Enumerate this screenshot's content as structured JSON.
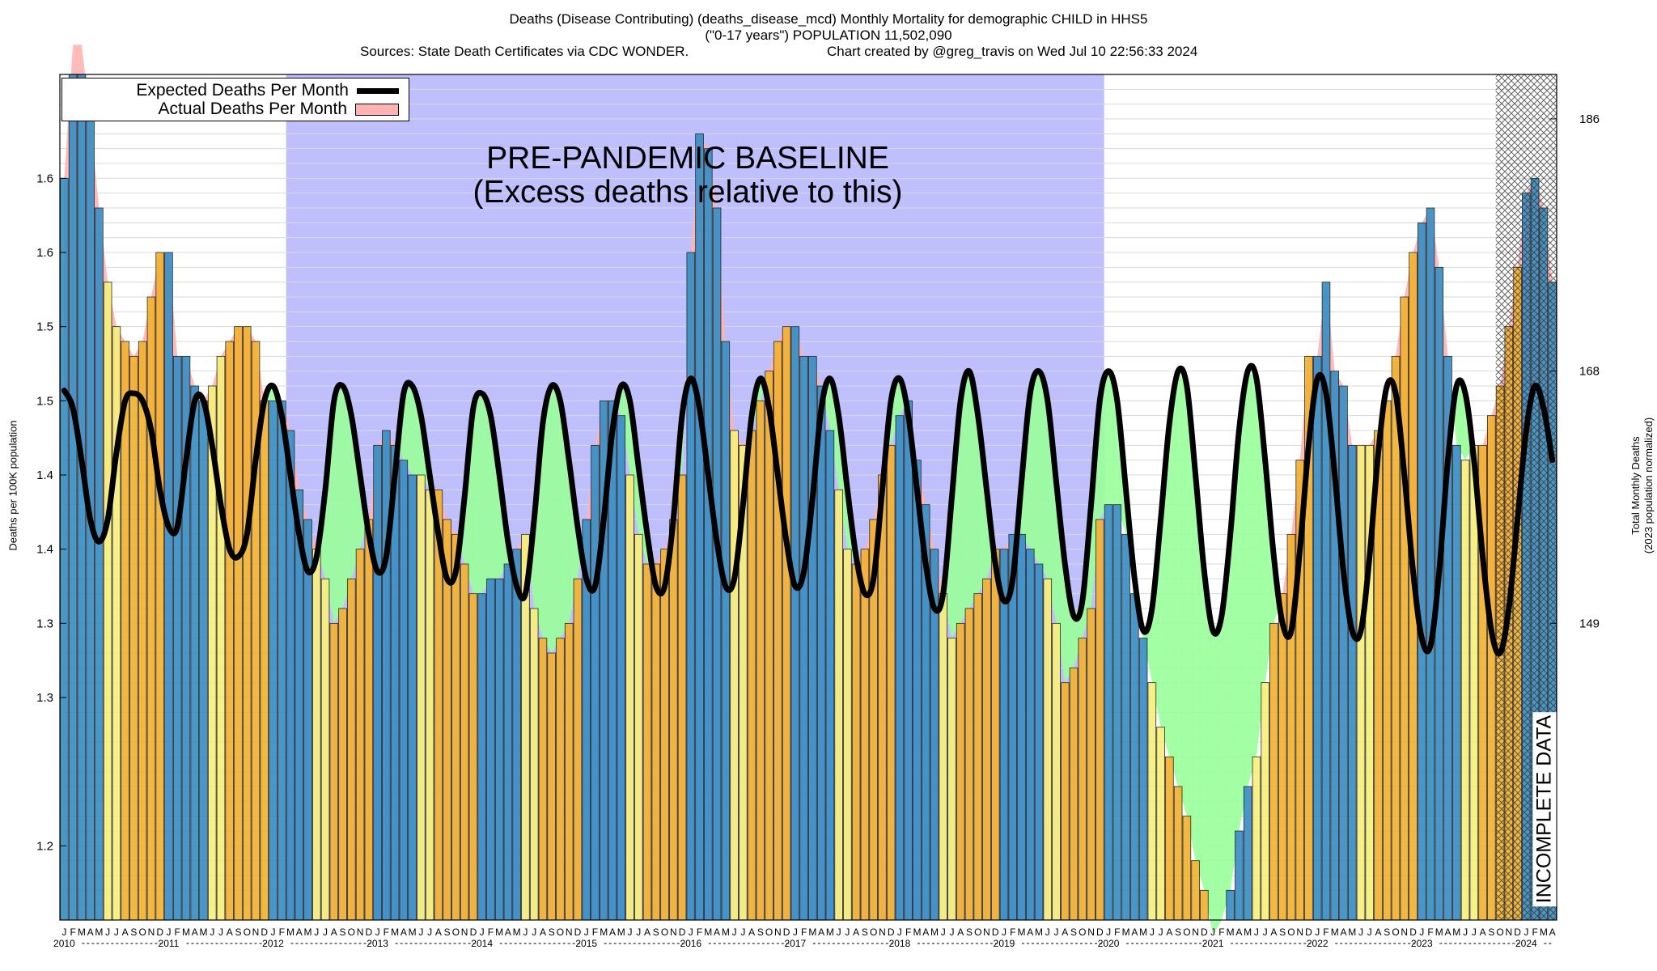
{
  "title": {
    "line1": "Deaths (Disease Contributing) (deaths_disease_mcd) Monthly Mortality for demographic CHILD in HHS5",
    "line2": "(\"0-17 years\") POPULATION 11,502,090",
    "sources": "Sources: State Death Certificates via CDC WONDER.",
    "created_by": "Chart created by @greg_travis on Wed Jul 10 22:56:33 2024"
  },
  "legend": {
    "expected": "Expected Deaths Per Month",
    "actual": "Actual Deaths Per Month"
  },
  "annotations": {
    "baseline_line1": "PRE-PANDEMIC BASELINE",
    "baseline_line2": "(Excess deaths relative to this)",
    "incomplete": "INCOMPLETE DATA"
  },
  "axes": {
    "ylabel_left": "Deaths per 100K population",
    "ylabel_right_line1": "Total Monthly Deaths",
    "ylabel_right_line2": "(2023 population normalized)"
  },
  "colors": {
    "baseline_region": "#bfbffe",
    "excess_fill": "#ffb3b3",
    "deficit_fill": "#99ff99",
    "expected_line": "#000000",
    "bar_winter": "#3a8fc4",
    "bar_summer_fall": "#f2b233",
    "bar_summer_light": "#f7ef7c",
    "grid": "#d9d9d9"
  },
  "chart_data": {
    "type": "bar",
    "title": "Deaths (Disease Contributing) (deaths_disease_mcd) Monthly Mortality for demographic CHILD in HHS5",
    "ylabel": "Deaths per 100K population",
    "y2label": "Total Monthly Deaths (2023 population normalized)",
    "ylim": [
      1.1,
      1.67
    ],
    "y_ticks": [
      1.15,
      1.25,
      1.3,
      1.35,
      1.4,
      1.45,
      1.5,
      1.55,
      1.6
    ],
    "y_tick_labels": [
      "1.2",
      "1.3",
      "1.3",
      "1.4",
      "1.4",
      "1.5",
      "1.5",
      "1.6",
      "1.6"
    ],
    "y2_ticks": [
      149,
      168,
      186
    ],
    "y2_tick_values": [
      1.3,
      1.47,
      1.64
    ],
    "month_labels": [
      "J",
      "F",
      "M",
      "A",
      "M",
      "J",
      "J",
      "A",
      "S",
      "O",
      "N",
      "D"
    ],
    "year_labels": [
      "2010",
      "2011",
      "2012",
      "2013",
      "2014",
      "2015",
      "2016",
      "2017",
      "2018",
      "2019",
      "2020",
      "2021",
      "2022",
      "2023",
      "2024"
    ],
    "start": "2010-01",
    "end": "2024-05",
    "baseline_region": [
      "2012-03",
      "2019-12"
    ],
    "incomplete_region": [
      "2023-10",
      "2024-05"
    ],
    "series": [
      {
        "name": "Actual Deaths Per Month",
        "values": [
          1.6,
          1.69,
          1.69,
          1.64,
          1.58,
          1.53,
          1.5,
          1.49,
          1.48,
          1.49,
          1.52,
          1.55,
          1.55,
          1.48,
          1.48,
          1.46,
          1.45,
          1.46,
          1.48,
          1.49,
          1.5,
          1.5,
          1.49,
          1.45,
          1.45,
          1.45,
          1.43,
          1.39,
          1.37,
          1.35,
          1.33,
          1.3,
          1.31,
          1.33,
          1.35,
          1.37,
          1.42,
          1.43,
          1.42,
          1.41,
          1.4,
          1.4,
          1.39,
          1.39,
          1.37,
          1.36,
          1.34,
          1.32,
          1.32,
          1.33,
          1.33,
          1.34,
          1.35,
          1.36,
          1.31,
          1.29,
          1.28,
          1.29,
          1.3,
          1.33,
          1.37,
          1.42,
          1.45,
          1.45,
          1.44,
          1.4,
          1.36,
          1.34,
          1.34,
          1.35,
          1.37,
          1.4,
          1.55,
          1.63,
          1.62,
          1.58,
          1.49,
          1.43,
          1.42,
          1.43,
          1.45,
          1.47,
          1.49,
          1.5,
          1.5,
          1.48,
          1.48,
          1.46,
          1.43,
          1.39,
          1.35,
          1.34,
          1.35,
          1.37,
          1.4,
          1.42,
          1.44,
          1.45,
          1.41,
          1.38,
          1.35,
          1.32,
          1.29,
          1.3,
          1.31,
          1.32,
          1.33,
          1.35,
          1.35,
          1.36,
          1.36,
          1.35,
          1.34,
          1.33,
          1.3,
          1.26,
          1.27,
          1.29,
          1.31,
          1.37,
          1.38,
          1.38,
          1.36,
          1.32,
          1.29,
          1.26,
          1.23,
          1.21,
          1.19,
          1.17,
          1.14,
          1.12,
          1.09,
          1.1,
          1.12,
          1.16,
          1.19,
          1.21,
          1.26,
          1.3,
          1.32,
          1.36,
          1.41,
          1.48,
          1.48,
          1.53,
          1.47,
          1.46,
          1.42,
          1.42,
          1.42,
          1.43,
          1.45,
          1.48,
          1.52,
          1.55,
          1.57,
          1.58,
          1.54,
          1.48,
          1.42,
          1.41,
          1.42,
          1.42,
          1.44,
          1.46,
          1.5,
          1.54,
          1.59,
          1.6,
          1.58,
          1.53
        ]
      },
      {
        "name": "Expected Deaths Per Month",
        "values": [
          1.457,
          1.445,
          1.41,
          1.37,
          1.355,
          1.37,
          1.415,
          1.45,
          1.455,
          1.45,
          1.43,
          1.39,
          1.365,
          1.365,
          1.41,
          1.45,
          1.45,
          1.42,
          1.38,
          1.35,
          1.345,
          1.36,
          1.41,
          1.45,
          1.46,
          1.44,
          1.4,
          1.36,
          1.335,
          1.345,
          1.39,
          1.45,
          1.46,
          1.44,
          1.4,
          1.36,
          1.335,
          1.345,
          1.4,
          1.455,
          1.46,
          1.44,
          1.4,
          1.36,
          1.33,
          1.335,
          1.385,
          1.445,
          1.455,
          1.44,
          1.4,
          1.355,
          1.325,
          1.32,
          1.37,
          1.435,
          1.46,
          1.45,
          1.41,
          1.365,
          1.33,
          1.325,
          1.37,
          1.43,
          1.46,
          1.45,
          1.405,
          1.36,
          1.325,
          1.325,
          1.37,
          1.44,
          1.465,
          1.445,
          1.4,
          1.355,
          1.325,
          1.33,
          1.38,
          1.44,
          1.465,
          1.445,
          1.4,
          1.355,
          1.325,
          1.335,
          1.385,
          1.445,
          1.465,
          1.44,
          1.39,
          1.345,
          1.32,
          1.33,
          1.39,
          1.45,
          1.465,
          1.44,
          1.39,
          1.34,
          1.31,
          1.32,
          1.385,
          1.45,
          1.47,
          1.44,
          1.39,
          1.34,
          1.315,
          1.33,
          1.395,
          1.455,
          1.47,
          1.45,
          1.395,
          1.34,
          1.305,
          1.315,
          1.38,
          1.45,
          1.47,
          1.45,
          1.39,
          1.33,
          1.295,
          1.31,
          1.37,
          1.435,
          1.47,
          1.46,
          1.4,
          1.335,
          1.295,
          1.305,
          1.36,
          1.43,
          1.47,
          1.465,
          1.41,
          1.345,
          1.3,
          1.295,
          1.35,
          1.42,
          1.465,
          1.455,
          1.4,
          1.335,
          1.295,
          1.295,
          1.345,
          1.415,
          1.46,
          1.455,
          1.4,
          1.335,
          1.29,
          1.285,
          1.335,
          1.41,
          1.46,
          1.455,
          1.41,
          1.345,
          1.295,
          1.28,
          1.31,
          1.37,
          1.43,
          1.46,
          1.445,
          1.41
        ]
      }
    ],
    "legend_position": "top-left"
  }
}
